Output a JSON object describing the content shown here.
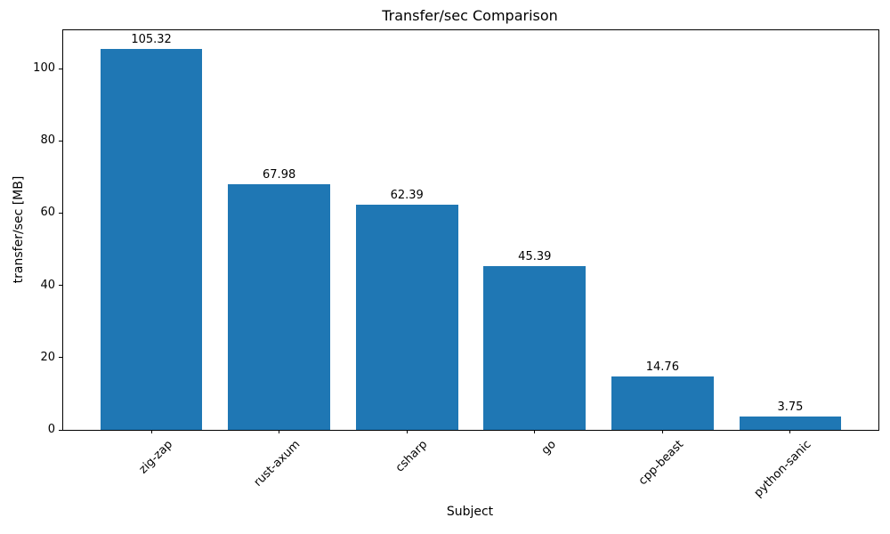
{
  "chart_data": {
    "type": "bar",
    "title": "Transfer/sec Comparison",
    "xlabel": "Subject",
    "ylabel": "transfer/sec [MB]",
    "categories": [
      "zig-zap",
      "rust-axum",
      "csharp",
      "go",
      "cpp-beast",
      "python-sanic"
    ],
    "values": [
      105.32,
      67.98,
      62.39,
      45.39,
      14.76,
      3.75
    ],
    "value_labels": [
      "105.32",
      "67.98",
      "62.39",
      "45.39",
      "14.76",
      "3.75"
    ],
    "yticks": [
      0,
      20,
      40,
      60,
      80,
      100
    ],
    "ylim": [
      0,
      110.6
    ],
    "xtick_rotation_deg": 45,
    "bar_color": "#1f77b4",
    "axis_color": "#000000",
    "text_color": "#000000",
    "background_color": "#ffffff",
    "grid": false,
    "legend": "none",
    "bar_width_fraction": 0.8,
    "x_margin_fraction": 0.05
  }
}
